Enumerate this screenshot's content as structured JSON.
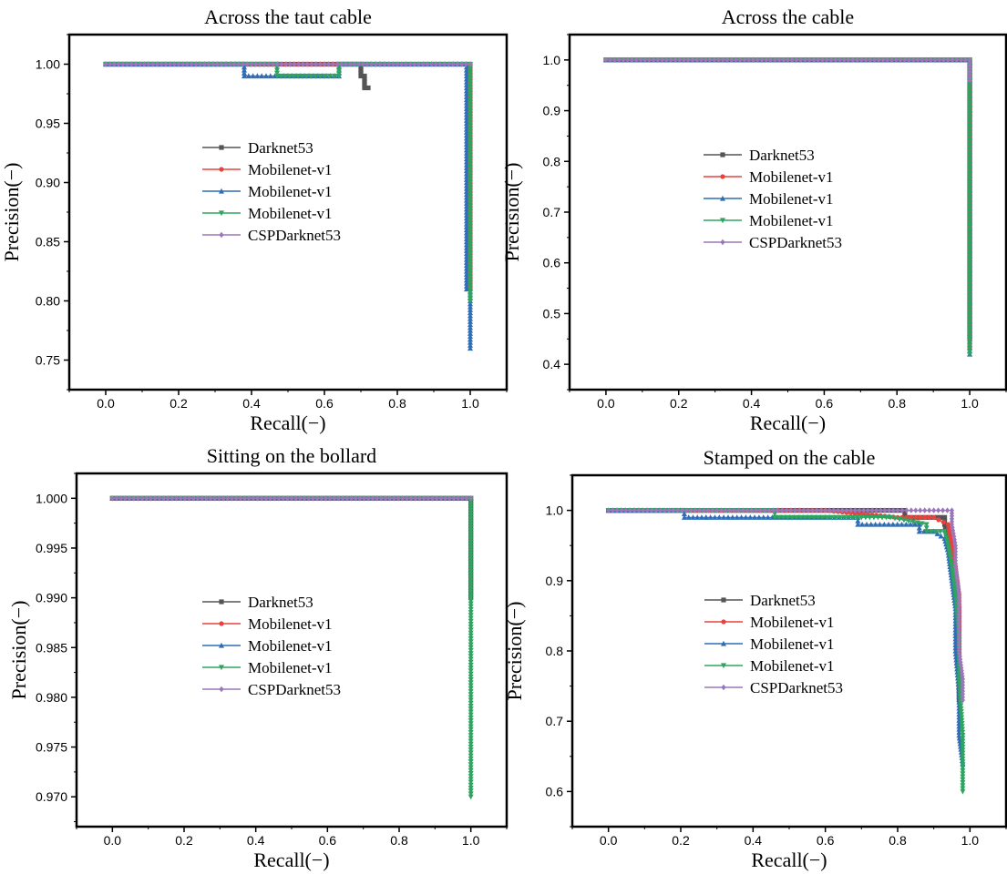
{
  "chart_data": [
    {
      "type": "line",
      "title": "Across the taut cable",
      "xlabel": "Recall(−)",
      "ylabel": "Precision(−)",
      "xlim": [
        -0.1,
        1.1
      ],
      "ylim": [
        0.725,
        1.025
      ],
      "xticks": [
        "0.0",
        "0.2",
        "0.4",
        "0.6",
        "0.8",
        "1.0"
      ],
      "yticks": [
        "0.75",
        "0.80",
        "0.85",
        "0.90",
        "0.95",
        "1.00"
      ],
      "grid": false,
      "legend_position": "center-left",
      "series": [
        {
          "name": "Darknet53",
          "color": "#555555",
          "marker": "square",
          "x": [
            0.0,
            0.1,
            0.2,
            0.3,
            0.4,
            0.5,
            0.6,
            0.7,
            0.7,
            0.71,
            0.71,
            0.72
          ],
          "y": [
            1.0,
            1.0,
            1.0,
            1.0,
            1.0,
            1.0,
            1.0,
            1.0,
            0.99,
            0.99,
            0.98,
            0.98
          ]
        },
        {
          "name": "Mobilenet-v1",
          "color": "#e8423f",
          "marker": "circle",
          "x": [
            0.0,
            0.2,
            0.4,
            0.6,
            0.8,
            0.99,
            1.0,
            1.0,
            1.0
          ],
          "y": [
            1.0,
            1.0,
            1.0,
            1.0,
            1.0,
            1.0,
            1.0,
            0.9,
            0.81
          ]
        },
        {
          "name": "Mobilenet-v1",
          "color": "#2f6db5",
          "marker": "triangle-up",
          "x": [
            0.0,
            0.2,
            0.38,
            0.38,
            0.5,
            0.64,
            0.64,
            0.8,
            0.99,
            0.99,
            1.0,
            1.0
          ],
          "y": [
            1.0,
            1.0,
            1.0,
            0.99,
            0.99,
            0.99,
            1.0,
            1.0,
            1.0,
            0.81,
            0.81,
            0.76
          ]
        },
        {
          "name": "Mobilenet-v1",
          "color": "#2da561",
          "marker": "triangle-down",
          "x": [
            0.0,
            0.2,
            0.47,
            0.47,
            0.55,
            0.64,
            0.64,
            0.8,
            1.0,
            1.0
          ],
          "y": [
            1.0,
            1.0,
            1.0,
            0.99,
            0.99,
            0.99,
            1.0,
            1.0,
            1.0,
            0.8
          ]
        },
        {
          "name": "CSPDarknet53",
          "color": "#9b76b8",
          "marker": "diamond",
          "x": [
            0.0,
            0.2,
            0.4,
            0.6,
            0.8,
            1.0
          ],
          "y": [
            1.0,
            1.0,
            1.0,
            1.0,
            1.0,
            1.0
          ]
        }
      ]
    },
    {
      "type": "line",
      "title": "Across the cable",
      "xlabel": "Recall(−)",
      "ylabel": "Precision(−)",
      "xlim": [
        -0.1,
        1.1
      ],
      "ylim": [
        0.35,
        1.05
      ],
      "xticks": [
        "0.0",
        "0.2",
        "0.4",
        "0.6",
        "0.8",
        "1.0"
      ],
      "yticks": [
        "0.4",
        "0.5",
        "0.6",
        "0.7",
        "0.8",
        "0.9",
        "1.0"
      ],
      "grid": false,
      "legend_position": "center-right",
      "series": [
        {
          "name": "Darknet53",
          "color": "#555555",
          "marker": "square",
          "x": [
            0.0,
            0.5,
            1.0,
            1.0
          ],
          "y": [
            1.0,
            1.0,
            1.0,
            0.45
          ]
        },
        {
          "name": "Mobilenet-v1",
          "color": "#e8423f",
          "marker": "circle",
          "x": [
            0.0,
            0.5,
            1.0,
            1.0
          ],
          "y": [
            1.0,
            1.0,
            1.0,
            0.43
          ]
        },
        {
          "name": "Mobilenet-v1",
          "color": "#2f6db5",
          "marker": "triangle-up",
          "x": [
            0.0,
            0.5,
            1.0,
            1.0
          ],
          "y": [
            1.0,
            1.0,
            1.0,
            0.42
          ]
        },
        {
          "name": "Mobilenet-v1",
          "color": "#2da561",
          "marker": "triangle-down",
          "x": [
            0.0,
            0.5,
            1.0,
            1.0
          ],
          "y": [
            1.0,
            1.0,
            1.0,
            0.42
          ]
        },
        {
          "name": "CSPDarknet53",
          "color": "#9b76b8",
          "marker": "diamond",
          "x": [
            0.0,
            0.5,
            1.0,
            1.0
          ],
          "y": [
            1.0,
            1.0,
            1.0,
            0.96
          ]
        }
      ]
    },
    {
      "type": "line",
      "title": "Sitting on the bollard",
      "xlabel": "Recall(−)",
      "ylabel": "Precision(−)",
      "xlim": [
        -0.1,
        1.1
      ],
      "ylim": [
        0.967,
        1.0025
      ],
      "xticks": [
        "0.0",
        "0.2",
        "0.4",
        "0.6",
        "0.8",
        "1.0"
      ],
      "yticks": [
        "0.970",
        "0.975",
        "0.980",
        "0.985",
        "0.990",
        "0.995",
        "1.000"
      ],
      "grid": false,
      "legend_position": "center-left",
      "series": [
        {
          "name": "Darknet53",
          "color": "#555555",
          "marker": "square",
          "x": [
            0.0,
            0.5,
            1.0,
            1.0
          ],
          "y": [
            1.0,
            1.0,
            1.0,
            0.99
          ]
        },
        {
          "name": "Mobilenet-v1",
          "color": "#e8423f",
          "marker": "circle",
          "x": [
            0.0,
            0.5,
            1.0
          ],
          "y": [
            1.0,
            1.0,
            1.0
          ]
        },
        {
          "name": "Mobilenet-v1",
          "color": "#2f6db5",
          "marker": "triangle-up",
          "x": [
            0.0,
            0.5,
            1.0
          ],
          "y": [
            1.0,
            1.0,
            1.0
          ]
        },
        {
          "name": "Mobilenet-v1",
          "color": "#2da561",
          "marker": "triangle-down",
          "x": [
            0.0,
            0.5,
            1.0,
            1.0,
            1.0,
            1.0
          ],
          "y": [
            1.0,
            1.0,
            1.0,
            0.99,
            0.98,
            0.97
          ]
        },
        {
          "name": "CSPDarknet53",
          "color": "#9b76b8",
          "marker": "diamond",
          "x": [
            0.0,
            0.5,
            1.0
          ],
          "y": [
            1.0,
            1.0,
            1.0
          ]
        }
      ]
    },
    {
      "type": "line",
      "title": "Stamped on the cable",
      "xlabel": "Recall(−)",
      "ylabel": "Precision(−)",
      "xlim": [
        -0.1,
        1.1
      ],
      "ylim": [
        0.55,
        1.05
      ],
      "xticks": [
        "0.0",
        "0.2",
        "0.4",
        "0.6",
        "0.8",
        "1.0"
      ],
      "yticks": [
        "0.6",
        "0.7",
        "0.8",
        "0.9",
        "1.0"
      ],
      "grid": false,
      "legend_position": "center-right",
      "series": [
        {
          "name": "Darknet53",
          "color": "#555555",
          "marker": "square",
          "x": [
            0.0,
            0.2,
            0.4,
            0.6,
            0.82,
            0.82,
            0.9,
            0.93,
            0.93,
            0.94,
            0.95,
            0.96,
            0.97,
            0.97,
            0.97
          ],
          "y": [
            1.0,
            1.0,
            1.0,
            1.0,
            1.0,
            0.99,
            0.99,
            0.99,
            0.98,
            0.96,
            0.93,
            0.9,
            0.86,
            0.8,
            0.73
          ]
        },
        {
          "name": "Mobilenet-v1",
          "color": "#e8423f",
          "marker": "circle",
          "x": [
            0.0,
            0.2,
            0.4,
            0.6,
            0.8,
            0.9,
            0.94,
            0.95,
            0.96,
            0.97,
            0.97,
            0.97
          ],
          "y": [
            1.0,
            1.0,
            1.0,
            1.0,
            0.99,
            0.99,
            0.98,
            0.95,
            0.92,
            0.88,
            0.82,
            0.75
          ]
        },
        {
          "name": "Mobilenet-v1",
          "color": "#2f6db5",
          "marker": "triangle-up",
          "x": [
            0.0,
            0.21,
            0.21,
            0.27,
            0.27,
            0.6,
            0.69,
            0.69,
            0.86,
            0.86,
            0.9,
            0.93,
            0.94,
            0.95,
            0.96,
            0.96,
            0.97,
            0.97,
            0.98
          ],
          "y": [
            1.0,
            1.0,
            0.99,
            0.99,
            0.99,
            0.99,
            0.99,
            0.98,
            0.98,
            0.97,
            0.97,
            0.96,
            0.94,
            0.9,
            0.86,
            0.8,
            0.74,
            0.68,
            0.64
          ]
        },
        {
          "name": "Mobilenet-v1",
          "color": "#2da561",
          "marker": "triangle-down",
          "x": [
            0.0,
            0.2,
            0.46,
            0.46,
            0.7,
            0.78,
            0.88,
            0.88,
            0.93,
            0.94,
            0.95,
            0.96,
            0.97,
            0.97,
            0.98,
            0.98
          ],
          "y": [
            1.0,
            1.0,
            1.0,
            0.99,
            0.99,
            0.99,
            0.98,
            0.97,
            0.97,
            0.95,
            0.92,
            0.88,
            0.82,
            0.76,
            0.68,
            0.6
          ]
        },
        {
          "name": "CSPDarknet53",
          "color": "#9b76b8",
          "marker": "diamond",
          "x": [
            0.0,
            0.3,
            0.6,
            0.8,
            0.9,
            0.95,
            0.95,
            0.96,
            0.96,
            0.97,
            0.97,
            0.97,
            0.98,
            0.98
          ],
          "y": [
            1.0,
            1.0,
            1.0,
            1.0,
            1.0,
            1.0,
            0.98,
            0.95,
            0.92,
            0.88,
            0.84,
            0.8,
            0.76,
            0.73
          ]
        }
      ]
    }
  ]
}
